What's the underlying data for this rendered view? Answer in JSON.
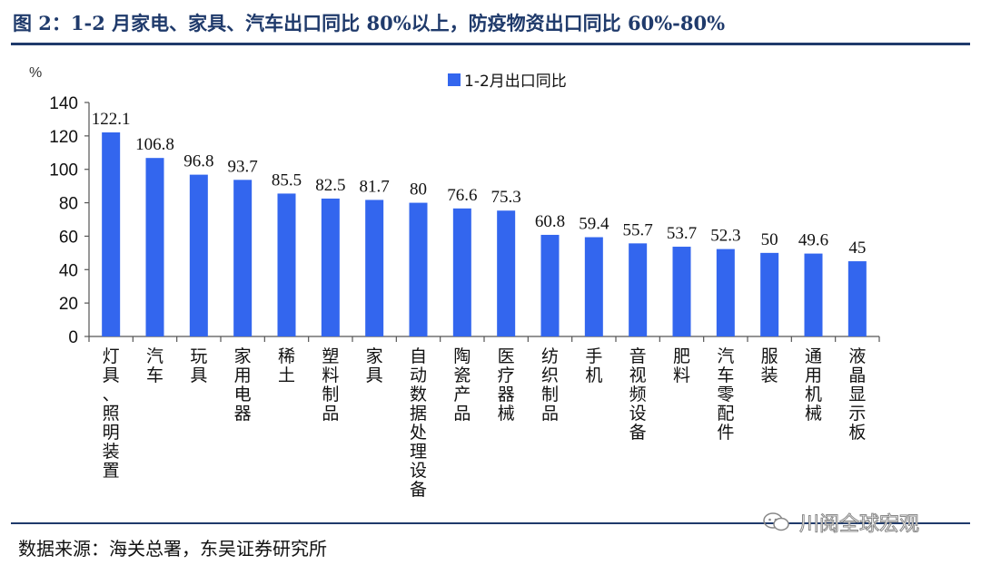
{
  "title": "图 2：1-2 月家电、家具、汽车出口同比 80%以上，防疫物资出口同比 60%-80%",
  "source": "数据来源：海关总署，东吴证券研究所",
  "watermark": "川阅全球宏观",
  "bar_color": "#3366ee",
  "chart_data": {
    "type": "bar",
    "title": "",
    "xlabel": "",
    "ylabel": "%",
    "ylim": [
      0,
      140
    ],
    "yticks": [
      0,
      20,
      40,
      60,
      80,
      100,
      120,
      140
    ],
    "grid": false,
    "legend_position": "top",
    "categories": [
      "灯具、照明装置",
      "汽车",
      "玩具",
      "家用电器",
      "稀土",
      "塑料制品",
      "家具",
      "自动数据处理设备",
      "陶瓷产品",
      "医疗器械",
      "纺织制品",
      "手机",
      "音视频设备",
      "肥料",
      "汽车零配件",
      "服装",
      "通用机械",
      "液晶显示板"
    ],
    "series": [
      {
        "name": "1-2月出口同比",
        "values": [
          122.1,
          106.8,
          96.8,
          93.7,
          85.5,
          82.5,
          81.7,
          80,
          76.6,
          75.3,
          60.8,
          59.4,
          55.7,
          53.7,
          52.3,
          50,
          49.6,
          45
        ],
        "labels": [
          "122.1",
          "106.8",
          "96.8",
          "93.7",
          "85.5",
          "82.5",
          "81.7",
          "80",
          "76.6",
          "75.3",
          "60.8",
          "59.4",
          "55.7",
          "53.7",
          "52.3",
          "50",
          "49.6",
          "45"
        ]
      }
    ]
  }
}
